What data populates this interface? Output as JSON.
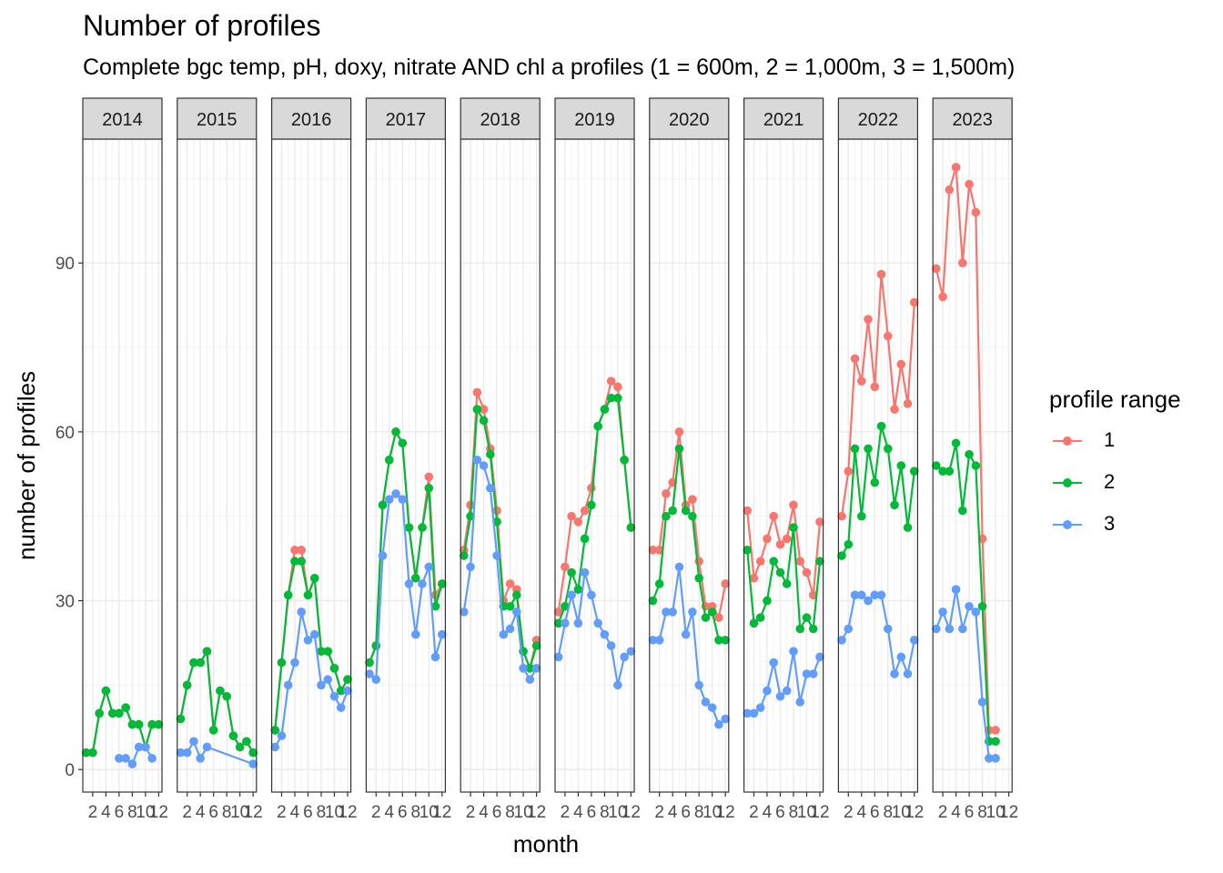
{
  "title": "Number of profiles",
  "subtitle": "Complete bgc temp, pH, doxy, nitrate AND chl a profiles (1 = 600m, 2 = 1,000m, 3 = 1,500m)",
  "legend": {
    "title": "profile range",
    "items": [
      {
        "label": "1",
        "color": "#F8766D"
      },
      {
        "label": "2",
        "color": "#00BA38"
      },
      {
        "label": "3",
        "color": "#619CFF"
      }
    ]
  },
  "chart_data": {
    "type": "line",
    "facet_by": "year",
    "xlabel": "month",
    "ylabel": "number of profiles",
    "x_ticks": [
      2,
      4,
      6,
      8,
      10,
      12
    ],
    "x_tick_labels": [
      "2",
      "4",
      "6",
      "8",
      "10",
      "12"
    ],
    "y_ticks": [
      0,
      30,
      60,
      90
    ],
    "y_tick_labels": [
      "0",
      "30",
      "60",
      "90"
    ],
    "xlim": [
      0.5,
      12.5
    ],
    "ylim": [
      -4,
      112
    ],
    "grid": true,
    "legend_position": "right",
    "series_colors": {
      "1": "#F8766D",
      "2": "#00BA38",
      "3": "#619CFF"
    },
    "panels": [
      {
        "year": "2014",
        "series": [
          {
            "name": "1",
            "x": [
              1,
              2,
              3,
              4,
              5,
              6,
              7,
              8,
              9,
              10,
              11,
              12
            ],
            "y": [
              3,
              3,
              10,
              14,
              10,
              10,
              11,
              8,
              8,
              4,
              8,
              8
            ]
          },
          {
            "name": "2",
            "x": [
              1,
              2,
              3,
              4,
              5,
              6,
              7,
              8,
              9,
              10,
              11,
              12
            ],
            "y": [
              3,
              3,
              10,
              14,
              10,
              10,
              11,
              8,
              8,
              4,
              8,
              8
            ]
          },
          {
            "name": "3",
            "x": [
              6,
              7,
              8,
              9,
              10,
              11
            ],
            "y": [
              2,
              2,
              1,
              4,
              4,
              2
            ]
          }
        ]
      },
      {
        "year": "2015",
        "series": [
          {
            "name": "1",
            "x": [
              1,
              2,
              3,
              4,
              5,
              6,
              7,
              8,
              9,
              10,
              11,
              12
            ],
            "y": [
              9,
              15,
              19,
              19,
              21,
              7,
              14,
              13,
              6,
              4,
              5,
              3
            ]
          },
          {
            "name": "2",
            "x": [
              1,
              2,
              3,
              4,
              5,
              6,
              7,
              8,
              9,
              10,
              11,
              12
            ],
            "y": [
              9,
              15,
              19,
              19,
              21,
              7,
              14,
              13,
              6,
              4,
              5,
              3
            ]
          },
          {
            "name": "3",
            "x": [
              1,
              2,
              3,
              4,
              5,
              12
            ],
            "y": [
              3,
              3,
              5,
              2,
              4,
              1
            ]
          }
        ]
      },
      {
        "year": "2016",
        "series": [
          {
            "name": "1",
            "x": [
              1,
              2,
              3,
              4,
              5,
              6,
              7,
              8,
              9,
              10,
              11,
              12
            ],
            "y": [
              7,
              19,
              31,
              39,
              39,
              31,
              34,
              21,
              21,
              18,
              14,
              16
            ]
          },
          {
            "name": "2",
            "x": [
              1,
              2,
              3,
              4,
              5,
              6,
              7,
              8,
              9,
              10,
              11,
              12
            ],
            "y": [
              7,
              19,
              31,
              37,
              37,
              31,
              34,
              21,
              21,
              18,
              14,
              16
            ]
          },
          {
            "name": "3",
            "x": [
              1,
              2,
              3,
              4,
              5,
              6,
              7,
              8,
              9,
              10,
              11,
              12
            ],
            "y": [
              4,
              6,
              15,
              19,
              28,
              23,
              24,
              15,
              16,
              13,
              11,
              14
            ]
          }
        ]
      },
      {
        "year": "2017",
        "series": [
          {
            "name": "1",
            "x": [
              1,
              2,
              3,
              4,
              5,
              6,
              7,
              8,
              9,
              10,
              11,
              12
            ],
            "y": [
              19,
              22,
              47,
              55,
              60,
              58,
              43,
              34,
              43,
              52,
              31,
              33
            ]
          },
          {
            "name": "2",
            "x": [
              1,
              2,
              3,
              4,
              5,
              6,
              7,
              8,
              9,
              10,
              11,
              12
            ],
            "y": [
              19,
              22,
              47,
              55,
              60,
              58,
              43,
              34,
              43,
              50,
              29,
              33
            ]
          },
          {
            "name": "3",
            "x": [
              1,
              2,
              3,
              4,
              5,
              6,
              7,
              8,
              9,
              10,
              11,
              12
            ],
            "y": [
              17,
              16,
              38,
              48,
              49,
              48,
              33,
              24,
              33,
              36,
              20,
              24
            ]
          }
        ]
      },
      {
        "year": "2018",
        "series": [
          {
            "name": "1",
            "x": [
              1,
              2,
              3,
              4,
              5,
              6,
              7,
              8,
              9,
              10,
              11,
              12
            ],
            "y": [
              39,
              47,
              67,
              64,
              57,
              46,
              30,
              33,
              32,
              21,
              18,
              23
            ]
          },
          {
            "name": "2",
            "x": [
              1,
              2,
              3,
              4,
              5,
              6,
              7,
              8,
              9,
              10,
              11,
              12
            ],
            "y": [
              38,
              45,
              64,
              62,
              56,
              44,
              29,
              29,
              31,
              21,
              18,
              22
            ]
          },
          {
            "name": "3",
            "x": [
              1,
              2,
              3,
              4,
              5,
              6,
              7,
              8,
              9,
              10,
              11,
              12
            ],
            "y": [
              28,
              36,
              55,
              54,
              50,
              38,
              24,
              25,
              28,
              18,
              16,
              18
            ]
          }
        ]
      },
      {
        "year": "2019",
        "series": [
          {
            "name": "1",
            "x": [
              1,
              2,
              3,
              4,
              5,
              6,
              7,
              8,
              9,
              10,
              11,
              12
            ],
            "y": [
              28,
              36,
              45,
              44,
              46,
              50,
              61,
              64,
              69,
              68,
              55,
              43
            ]
          },
          {
            "name": "2",
            "x": [
              1,
              2,
              3,
              4,
              5,
              6,
              7,
              8,
              9,
              10,
              11,
              12
            ],
            "y": [
              26,
              29,
              35,
              32,
              41,
              47,
              61,
              64,
              66,
              66,
              55,
              43
            ]
          },
          {
            "name": "3",
            "x": [
              1,
              2,
              3,
              4,
              5,
              6,
              7,
              8,
              9,
              10,
              11,
              12
            ],
            "y": [
              20,
              26,
              31,
              26,
              35,
              31,
              26,
              24,
              22,
              15,
              20,
              21
            ]
          }
        ]
      },
      {
        "year": "2020",
        "series": [
          {
            "name": "1",
            "x": [
              1,
              2,
              3,
              4,
              5,
              6,
              7,
              8,
              9,
              10,
              11,
              12
            ],
            "y": [
              39,
              39,
              49,
              51,
              60,
              47,
              48,
              37,
              29,
              29,
              27,
              33
            ]
          },
          {
            "name": "2",
            "x": [
              1,
              2,
              3,
              4,
              5,
              6,
              7,
              8,
              9,
              10,
              11,
              12
            ],
            "y": [
              30,
              33,
              45,
              46,
              57,
              46,
              45,
              34,
              27,
              28,
              23,
              23
            ]
          },
          {
            "name": "3",
            "x": [
              1,
              2,
              3,
              4,
              5,
              6,
              7,
              8,
              9,
              10,
              11,
              12
            ],
            "y": [
              23,
              23,
              28,
              28,
              36,
              24,
              28,
              15,
              12,
              11,
              8,
              9
            ]
          }
        ]
      },
      {
        "year": "2021",
        "series": [
          {
            "name": "1",
            "x": [
              1,
              2,
              3,
              4,
              5,
              6,
              7,
              8,
              9,
              10,
              11,
              12
            ],
            "y": [
              46,
              34,
              37,
              41,
              45,
              40,
              41,
              47,
              37,
              35,
              31,
              44
            ]
          },
          {
            "name": "2",
            "x": [
              1,
              2,
              3,
              4,
              5,
              6,
              7,
              8,
              9,
              10,
              11,
              12
            ],
            "y": [
              39,
              26,
              27,
              30,
              37,
              35,
              33,
              43,
              25,
              27,
              25,
              37
            ]
          },
          {
            "name": "3",
            "x": [
              1,
              2,
              3,
              4,
              5,
              6,
              7,
              8,
              9,
              10,
              11,
              12
            ],
            "y": [
              10,
              10,
              11,
              14,
              19,
              13,
              14,
              21,
              12,
              17,
              17,
              20
            ]
          }
        ]
      },
      {
        "year": "2022",
        "series": [
          {
            "name": "1",
            "x": [
              1,
              2,
              3,
              4,
              5,
              6,
              7,
              8,
              9,
              10,
              11,
              12
            ],
            "y": [
              45,
              53,
              73,
              69,
              80,
              68,
              88,
              77,
              64,
              72,
              65,
              83
            ]
          },
          {
            "name": "2",
            "x": [
              1,
              2,
              3,
              4,
              5,
              6,
              7,
              8,
              9,
              10,
              11,
              12
            ],
            "y": [
              38,
              40,
              57,
              45,
              57,
              51,
              61,
              57,
              47,
              54,
              43,
              53
            ]
          },
          {
            "name": "3",
            "x": [
              1,
              2,
              3,
              4,
              5,
              6,
              7,
              8,
              9,
              10,
              11,
              12
            ],
            "y": [
              23,
              25,
              31,
              31,
              30,
              31,
              31,
              25,
              17,
              20,
              17,
              23
            ]
          }
        ]
      },
      {
        "year": "2023",
        "series": [
          {
            "name": "1",
            "x": [
              1,
              2,
              3,
              4,
              5,
              6,
              7,
              8,
              9,
              10
            ],
            "y": [
              89,
              84,
              103,
              107,
              90,
              104,
              99,
              41,
              7,
              7
            ]
          },
          {
            "name": "2",
            "x": [
              1,
              2,
              3,
              4,
              5,
              6,
              7,
              8,
              9,
              10
            ],
            "y": [
              54,
              53,
              53,
              58,
              46,
              56,
              54,
              29,
              5,
              5
            ]
          },
          {
            "name": "3",
            "x": [
              1,
              2,
              3,
              4,
              5,
              6,
              7,
              8,
              9,
              10
            ],
            "y": [
              25,
              28,
              25,
              32,
              25,
              29,
              28,
              12,
              2,
              2
            ]
          }
        ]
      }
    ]
  }
}
